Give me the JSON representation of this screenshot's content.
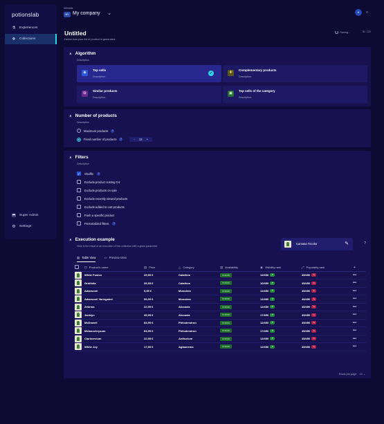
{
  "brand": {
    "name": "potionslab"
  },
  "sidebar": {
    "items": [
      {
        "label": "Experiences",
        "icon": "flask-icon"
      },
      {
        "label": "Collections",
        "icon": "cube-icon"
      }
    ],
    "bottom": [
      {
        "label": "Super Admin",
        "icon": "admin-icon"
      },
      {
        "label": "Settings",
        "icon": "gear-icon"
      }
    ]
  },
  "workspace": {
    "label": "Website",
    "badge": "MY",
    "name": "My company"
  },
  "user": {
    "initial": "A"
  },
  "page": {
    "title": "Untitled",
    "subtitle": "Define how your list of product is generated.",
    "saving": "Saving...",
    "id": "ID: 122"
  },
  "algorithm": {
    "title": "Algorithm",
    "description": "Description",
    "options": [
      {
        "name": "Top sells",
        "desc": "Description.",
        "selected": true
      },
      {
        "name": "Complementary products",
        "desc": "Description.",
        "selected": false
      },
      {
        "name": "Similar products",
        "desc": "Description.",
        "selected": false
      },
      {
        "name": "Top sells of the category",
        "desc": "Description.",
        "selected": false
      }
    ]
  },
  "number": {
    "title": "Number of products",
    "description": "Description",
    "max_label": "Maximum products",
    "fixed_label": "Fixed number of products",
    "value": "12",
    "minus": "-",
    "plus": "+"
  },
  "filters": {
    "title": "Filters",
    "description": "Description",
    "items": [
      {
        "label": "Shuffle",
        "checked": true,
        "help": true
      },
      {
        "label": "Exclude product costing 0 €",
        "checked": false,
        "help": false
      },
      {
        "label": "Exclude products on sale",
        "checked": false,
        "help": false
      },
      {
        "label": "Exclude recently viewed products",
        "checked": false,
        "help": false
      },
      {
        "label": "Exclude added to cart products",
        "checked": false,
        "help": false
      },
      {
        "label": "Push a specific product",
        "checked": false,
        "help": false
      },
      {
        "label": "Personalized filters",
        "checked": false,
        "help": true
      }
    ]
  },
  "execution": {
    "title": "Execution example",
    "description": "Here is the result of an execution of this collection with a given parameter.",
    "product": "Camasa Tricolor",
    "help": "?",
    "tabs": [
      "Table View",
      "Preview View"
    ],
    "columns": [
      "Product's name",
      "Price",
      "Category",
      "Availability",
      "Visibility rank",
      "Popularity rank"
    ],
    "rows": [
      {
        "name": "White Fusion",
        "price": "29,95 €",
        "category": "Calathea",
        "availability": "In stock",
        "visibility": "12/450",
        "popularity": "45/450"
      },
      {
        "name": "Orbifolia",
        "price": "39,95 €",
        "category": "Calathea",
        "availability": "In stock",
        "visibility": "10/450",
        "popularity": "45/450"
      },
      {
        "name": "Adansonii",
        "price": "5,95 €",
        "category": "Monstera",
        "availability": "In stock",
        "visibility": "12/450",
        "popularity": "45/450"
      },
      {
        "name": "Adansonii Variegated",
        "price": "59,95 €",
        "category": "Monstera",
        "availability": "In stock",
        "visibility": "12/450",
        "popularity": "45/450"
      },
      {
        "name": "Zebrina",
        "price": "22,95 €",
        "category": "Alocasia",
        "availability": "In stock",
        "visibility": "12/450",
        "popularity": "45/450"
      },
      {
        "name": "Jacklyn",
        "price": "49,95 €",
        "category": "Alocasia",
        "availability": "In stock",
        "visibility": "17/450",
        "popularity": "45/450"
      },
      {
        "name": "McDowell",
        "price": "84,95 €",
        "category": "Philodendron",
        "availability": "In stock",
        "visibility": "12/450",
        "popularity": "45/450"
      },
      {
        "name": "Melanochrysum",
        "price": "84,95 €",
        "category": "Philodendron",
        "availability": "In stock",
        "visibility": "17/450",
        "popularity": "45/450"
      },
      {
        "name": "Clarinervium",
        "price": "22,95 €",
        "category": "Anthurium",
        "availability": "In stock",
        "visibility": "12/450",
        "popularity": "45/450"
      },
      {
        "name": "White Joy",
        "price": "17,95 €",
        "category": "Aglaonema",
        "availability": "In stock",
        "visibility": "12/450",
        "popularity": "45/450"
      }
    ],
    "rows_per_page_label": "Rows per page",
    "rows_per_page": "10"
  },
  "colors": {
    "accent": "#2fd4e6",
    "background": "#0d0b33",
    "card": "#17124f",
    "selected": "#28278e"
  }
}
